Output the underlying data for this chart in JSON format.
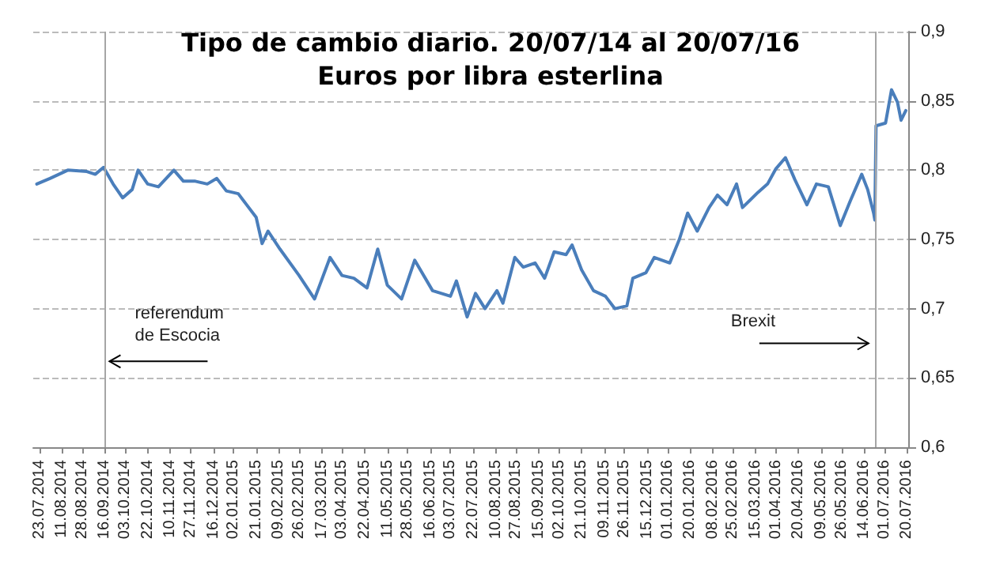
{
  "chart_data": {
    "type": "line",
    "title": "Tipo de cambio diario. 20/07/14 al 20/07/16",
    "subtitle": "Euros por libra esterlina",
    "x": [
      "2014-07-21",
      "2014-08-01",
      "2014-08-16",
      "2014-09-01",
      "2014-09-08",
      "2014-09-15",
      "2014-09-23",
      "2014-10-01",
      "2014-10-09",
      "2014-10-14",
      "2014-10-22",
      "2014-10-31",
      "2014-11-13",
      "2014-11-21",
      "2014-12-01",
      "2014-12-11",
      "2014-12-19",
      "2014-12-27",
      "2015-01-06",
      "2015-01-13",
      "2015-01-21",
      "2015-01-26",
      "2015-01-31",
      "2015-02-10",
      "2015-02-26",
      "2015-03-11",
      "2015-03-24",
      "2015-04-03",
      "2015-04-13",
      "2015-04-24",
      "2015-05-03",
      "2015-05-11",
      "2015-05-23",
      "2015-06-03",
      "2015-06-18",
      "2015-07-03",
      "2015-07-08",
      "2015-07-17",
      "2015-07-24",
      "2015-08-01",
      "2015-08-11",
      "2015-08-16",
      "2015-08-26",
      "2015-09-02",
      "2015-09-12",
      "2015-09-20",
      "2015-09-28",
      "2015-10-08",
      "2015-10-13",
      "2015-10-21",
      "2015-10-31",
      "2015-11-10",
      "2015-11-18",
      "2015-11-28",
      "2015-12-03",
      "2015-12-14",
      "2015-12-21",
      "2016-01-03",
      "2016-01-11",
      "2016-01-18",
      "2016-01-26",
      "2016-02-05",
      "2016-02-12",
      "2016-02-20",
      "2016-02-28",
      "2016-03-04",
      "2016-03-17",
      "2016-03-25",
      "2016-04-01",
      "2016-04-09",
      "2016-04-17",
      "2016-04-27",
      "2016-05-05",
      "2016-05-15",
      "2016-05-25",
      "2016-06-02",
      "2016-06-12",
      "2016-06-17",
      "2016-06-22",
      "2016-06-23",
      "2016-06-24",
      "2016-07-02",
      "2016-07-07",
      "2016-07-12",
      "2016-07-15",
      "2016-07-19"
    ],
    "series": [
      {
        "color": "#4a7ebb",
        "values": [
          0.79,
          0.794,
          0.8,
          0.799,
          0.797,
          0.802,
          0.79,
          0.78,
          0.786,
          0.8,
          0.79,
          0.788,
          0.8,
          0.792,
          0.792,
          0.79,
          0.794,
          0.785,
          0.783,
          0.775,
          0.766,
          0.747,
          0.756,
          0.743,
          0.724,
          0.707,
          0.737,
          0.724,
          0.722,
          0.715,
          0.743,
          0.717,
          0.707,
          0.735,
          0.713,
          0.709,
          0.72,
          0.694,
          0.711,
          0.7,
          0.713,
          0.704,
          0.737,
          0.73,
          0.733,
          0.722,
          0.741,
          0.739,
          0.746,
          0.728,
          0.713,
          0.709,
          0.7,
          0.702,
          0.722,
          0.726,
          0.737,
          0.733,
          0.75,
          0.769,
          0.756,
          0.773,
          0.782,
          0.775,
          0.79,
          0.773,
          0.784,
          0.79,
          0.801,
          0.809,
          0.793,
          0.775,
          0.79,
          0.788,
          0.76,
          0.777,
          0.797,
          0.786,
          0.769,
          0.764,
          0.832,
          0.834,
          0.858,
          0.849,
          0.836,
          0.843
        ]
      }
    ],
    "xlim": [
      "2014-07-18",
      "2016-07-21"
    ],
    "xticks": [
      {
        "value": "2014-07-23",
        "label": "23.07.2014"
      },
      {
        "value": "2014-08-11",
        "label": "11.08.2014"
      },
      {
        "value": "2014-08-28",
        "label": "28.08.2014"
      },
      {
        "value": "2014-09-16",
        "label": "16.09.2014"
      },
      {
        "value": "2014-10-03",
        "label": "03.10.2014"
      },
      {
        "value": "2014-10-22",
        "label": "22.10.2014"
      },
      {
        "value": "2014-11-10",
        "label": "10.11.2014"
      },
      {
        "value": "2014-11-27",
        "label": "27.11.2014"
      },
      {
        "value": "2014-12-16",
        "label": "16.12.2014"
      },
      {
        "value": "2015-01-02",
        "label": "02.01.2015"
      },
      {
        "value": "2015-01-21",
        "label": "21.01.2015"
      },
      {
        "value": "2015-02-09",
        "label": "09.02.2015"
      },
      {
        "value": "2015-02-26",
        "label": "26.02.2015"
      },
      {
        "value": "2015-03-17",
        "label": "17.03.2015"
      },
      {
        "value": "2015-04-03",
        "label": "03.04.2015"
      },
      {
        "value": "2015-04-22",
        "label": "22.04.2015"
      },
      {
        "value": "2015-05-11",
        "label": "11.05.2015"
      },
      {
        "value": "2015-05-28",
        "label": "28.05.2015"
      },
      {
        "value": "2015-06-16",
        "label": "16.06.2015"
      },
      {
        "value": "2015-07-03",
        "label": "03.07.2015"
      },
      {
        "value": "2015-07-22",
        "label": "22.07.2015"
      },
      {
        "value": "2015-08-10",
        "label": "10.08.2015"
      },
      {
        "value": "2015-08-27",
        "label": "27.08.2015"
      },
      {
        "value": "2015-09-15",
        "label": "15.09.2015"
      },
      {
        "value": "2015-10-02",
        "label": "02.10.2015"
      },
      {
        "value": "2015-10-21",
        "label": "21.10.2015"
      },
      {
        "value": "2015-11-09",
        "label": "09.11.2015"
      },
      {
        "value": "2015-11-26",
        "label": "26.11.2015"
      },
      {
        "value": "2015-12-15",
        "label": "15.12.2015"
      },
      {
        "value": "2016-01-01",
        "label": "01.01.2016"
      },
      {
        "value": "2016-01-20",
        "label": "20.01.2016"
      },
      {
        "value": "2016-02-08",
        "label": "08.02.2016"
      },
      {
        "value": "2016-02-25",
        "label": "25.02.2016"
      },
      {
        "value": "2016-03-15",
        "label": "15.03.2016"
      },
      {
        "value": "2016-04-01",
        "label": "01.04.2016"
      },
      {
        "value": "2016-04-20",
        "label": "20.04.2016"
      },
      {
        "value": "2016-05-09",
        "label": "09.05.2016"
      },
      {
        "value": "2016-05-26",
        "label": "26.05.2016"
      },
      {
        "value": "2016-06-14",
        "label": "14.06.2016"
      },
      {
        "value": "2016-07-01",
        "label": "01.07.2016"
      },
      {
        "value": "2016-07-20",
        "label": "20.07.2016"
      }
    ],
    "ylim": [
      0.6,
      0.9
    ],
    "yticks": [
      {
        "value": 0.6,
        "label": "0,6"
      },
      {
        "value": 0.65,
        "label": "0,65"
      },
      {
        "value": 0.7,
        "label": "0,7"
      },
      {
        "value": 0.75,
        "label": "0,75"
      },
      {
        "value": 0.8,
        "label": "0,8"
      },
      {
        "value": 0.85,
        "label": "0,85"
      },
      {
        "value": 0.9,
        "label": "0,9"
      }
    ],
    "grid": "y",
    "ref_lines": [
      {
        "axis": "x",
        "value": "2014-09-16",
        "color": "#a6a6a6"
      },
      {
        "axis": "x",
        "value": "2016-06-23",
        "color": "#a6a6a6"
      }
    ],
    "annotations": [
      {
        "text": "referendum de Escocia",
        "x": "2014-09-16",
        "y": 0.662
      },
      {
        "text": "Brexit",
        "x": "2016-06-23",
        "y": 0.675
      }
    ],
    "marker": "none",
    "line_style": "solid"
  }
}
